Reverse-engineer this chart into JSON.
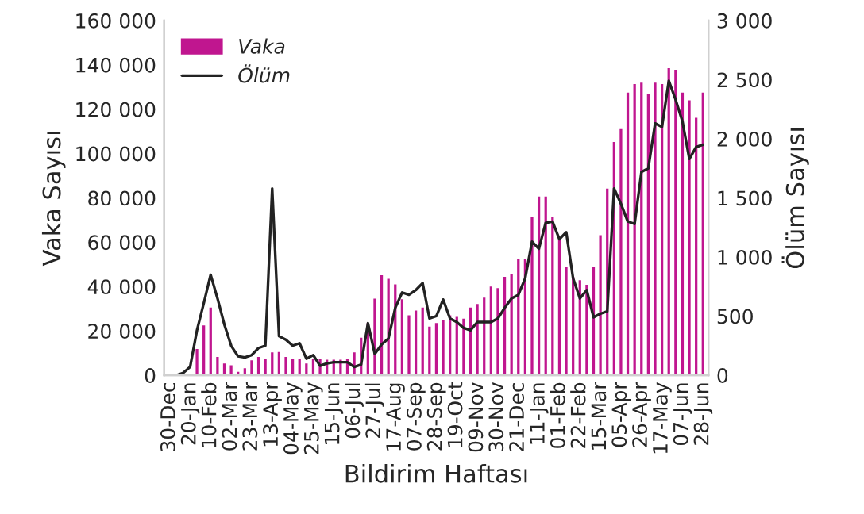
{
  "chart_data": {
    "type": "bar",
    "xlabel": "Bildirim Haftası",
    "ylabel": "Vaka Sayısı",
    "y2label": "Ölüm Sayısı",
    "categories": [
      "30-Dec",
      null,
      null,
      "20-Jan",
      null,
      null,
      "10-Feb",
      null,
      null,
      "02-Mar",
      null,
      null,
      "23-Mar",
      null,
      null,
      "13-Apr",
      null,
      null,
      "04-May",
      null,
      null,
      "25-May",
      null,
      null,
      "15-Jun",
      null,
      null,
      "06-Jul",
      null,
      null,
      "27-Jul",
      null,
      null,
      "17-Aug",
      null,
      null,
      "07-Sep",
      null,
      null,
      "28-Sep",
      null,
      null,
      "19-Oct",
      null,
      null,
      "09-Nov",
      null,
      null,
      "30-Nov",
      null,
      null,
      "21-Dec",
      null,
      null,
      "11-Jan",
      null,
      null,
      "01-Feb",
      null,
      null,
      "22-Feb",
      null,
      null,
      "15-Mar",
      null,
      null,
      "05-Apr",
      null,
      null,
      "26-Apr",
      null,
      null,
      "17-May",
      null,
      null,
      "07-Jun",
      null,
      null,
      "28-Jun"
    ],
    "series": [
      {
        "name": "Vaka",
        "color": "#c0168f",
        "values": [
          null,
          null,
          null,
          500,
          12300,
          23000,
          31000,
          8700,
          5800,
          5000,
          2000,
          3600,
          7200,
          8700,
          8000,
          10800,
          11000,
          8700,
          7900,
          7900,
          5800,
          7900,
          7900,
          7500,
          7500,
          7500,
          7900,
          10800,
          17400,
          24000,
          35000,
          45600,
          44000,
          41500,
          34800,
          27500,
          29700,
          31000,
          22400,
          24000,
          25300,
          27500,
          26800,
          26000,
          31000,
          32600,
          35500,
          40500,
          39800,
          44900,
          46300,
          52800,
          52800,
          71700,
          81100,
          81100,
          71700,
          61500,
          49200,
          44900,
          43400,
          41300,
          49200,
          63700,
          84700,
          105700,
          111500,
          128000,
          131800,
          132500,
          127400,
          132500,
          131800,
          139000,
          138300,
          128000,
          124500,
          116600,
          128000
        ]
      },
      {
        "name": "Ölüm",
        "type": "line",
        "axis": "y2",
        "color": "#222222",
        "values": [
          0,
          0,
          20,
          70,
          380,
          610,
          850,
          650,
          430,
          250,
          160,
          150,
          170,
          230,
          250,
          1580,
          330,
          300,
          250,
          270,
          140,
          170,
          80,
          100,
          110,
          110,
          110,
          70,
          90,
          440,
          180,
          260,
          310,
          570,
          700,
          680,
          720,
          780,
          480,
          500,
          640,
          480,
          450,
          400,
          380,
          450,
          450,
          450,
          480,
          570,
          650,
          680,
          820,
          1130,
          1070,
          1290,
          1300,
          1150,
          1210,
          820,
          650,
          720,
          490,
          520,
          540,
          1580,
          1450,
          1300,
          1280,
          1720,
          1750,
          2130,
          2100,
          2490,
          2330,
          2145,
          1830,
          1930,
          1950
        ]
      }
    ],
    "ylim": [
      0,
      160000
    ],
    "yticks": [
      0,
      {
        "value": 20000,
        "label": "20 000"
      },
      {
        "value": 40000,
        "label": "40 000"
      },
      {
        "value": 60000,
        "label": "60 000"
      },
      {
        "value": 80000,
        "label": "80 000"
      },
      {
        "value": 100000,
        "label": "100 000"
      },
      {
        "value": 120000,
        "label": "120 000"
      },
      {
        "value": 140000,
        "label": "140 000"
      },
      {
        "value": 160000,
        "label": "160 000"
      }
    ],
    "y2lim": [
      0,
      3000
    ],
    "y2ticks": [
      0,
      500,
      {
        "value": 1000,
        "label": "1 000"
      },
      {
        "value": 1500,
        "label": "1 500"
      },
      {
        "value": 2000,
        "label": "2 000"
      },
      {
        "value": 2500,
        "label": "2 500"
      },
      {
        "value": 3000,
        "label": "3 000"
      }
    ],
    "legend": "top left",
    "grid": false
  }
}
